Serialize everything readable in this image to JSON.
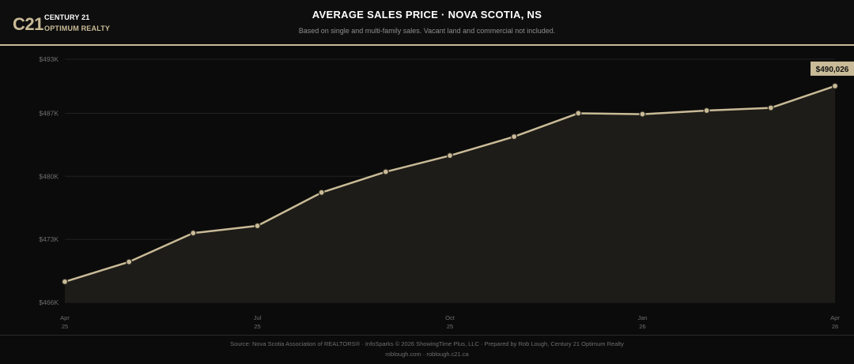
{
  "brand": {
    "mark": "C21",
    "line1": "CENTURY 21",
    "line2": "OPTIMUM REALTY"
  },
  "header": {
    "title": "AVERAGE SALES PRICE · NOVA SCOTIA, NS",
    "subtitle": "Based on single and multi-family sales. Vacant land and commercial not included."
  },
  "colors": {
    "accent": "#c9bb97",
    "background": "#0b0b0b",
    "area_fill": "#1e1c18",
    "grid": "#222222"
  },
  "chart_data": {
    "type": "area",
    "title": "AVERAGE SALES PRICE · NOVA SCOTIA, NS",
    "x": [
      "2025-04",
      "2025-05",
      "2025-06",
      "2025-07",
      "2025-08",
      "2025-09",
      "2025-10",
      "2025-11",
      "2025-12",
      "2026-01",
      "2026-02",
      "2026-03",
      "2026-04"
    ],
    "series": [
      {
        "values": [
          468300,
          470500,
          473700,
          474500,
          478200,
          480500,
          482300,
          484400,
          487000,
          486900,
          487300,
          487600,
          490026
        ]
      }
    ],
    "ylim": [
      466000,
      493000
    ],
    "yticks": [
      466000,
      473000,
      480000,
      487000,
      493000
    ],
    "ytick_labels": [
      "$466K",
      "$473K",
      "$480K",
      "$487K",
      "$493K"
    ],
    "xticks": [
      {
        "index": 0,
        "month": "Apr",
        "year": "25"
      },
      {
        "index": 3,
        "month": "Jul",
        "year": "25"
      },
      {
        "index": 6,
        "month": "Oct",
        "year": "25"
      },
      {
        "index": 9,
        "month": "Jan",
        "year": "26"
      },
      {
        "index": 12,
        "month": "Apr",
        "year": "26"
      }
    ],
    "last_value_label": "$490,026",
    "grid": true,
    "legend": "none"
  },
  "footer": {
    "source": "Source: Nova Scotia Association of REALTORS® · InfoSparks © 2026 ShowingTime Plus, LLC · Prepared by Rob Lough, Century 21 Optimum Realty",
    "links": "roblough.com · roblough.c21.ca"
  }
}
